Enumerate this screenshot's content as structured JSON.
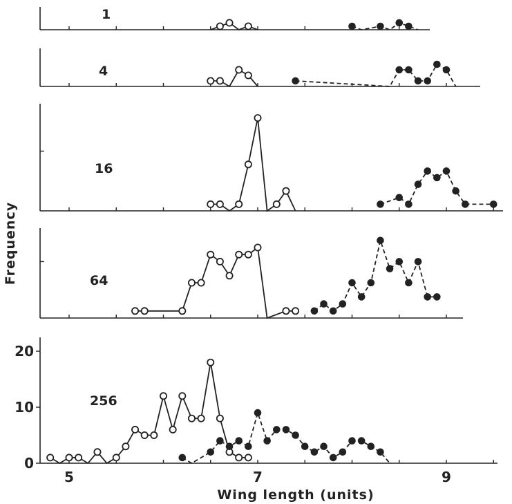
{
  "chart_data": {
    "type": "line",
    "xlabel": "Wing length (units)",
    "ylabel": "Frequency",
    "xlim": [
      4.75,
      9.7
    ],
    "x_ticks": [
      5,
      7,
      9
    ],
    "ylim": [
      0,
      20
    ],
    "y_ticks": [
      0,
      10,
      20
    ],
    "grid": false,
    "panels": [
      {
        "label": "1",
        "series": [
          {
            "marker": "open",
            "line": "solid",
            "x": [
              6.5,
              6.6,
              6.7,
              6.8,
              6.9,
              7.0
            ],
            "y": [
              0,
              1,
              2,
              0,
              1,
              0
            ]
          },
          {
            "marker": "filled",
            "line": "dashed",
            "x": [
              8.0,
              8.1,
              8.3,
              8.4,
              8.5,
              8.6,
              8.7
            ],
            "y": [
              1,
              0,
              1,
              0,
              2,
              1,
              0
            ]
          }
        ]
      },
      {
        "label": "4",
        "series": [
          {
            "marker": "open",
            "line": "solid",
            "x": [
              6.5,
              6.6,
              6.7,
              6.8,
              6.9,
              7.0
            ],
            "y": [
              1,
              1,
              0,
              3,
              2,
              0
            ]
          },
          {
            "marker": "filled",
            "line": "dashed",
            "x": [
              7.4,
              8.4,
              8.5,
              8.6,
              8.7,
              8.8,
              8.9,
              9.0,
              9.1
            ],
            "y": [
              1,
              0,
              3,
              3,
              1,
              1,
              4,
              3,
              0
            ]
          }
        ]
      },
      {
        "label": "16",
        "series": [
          {
            "marker": "open",
            "line": "solid",
            "x": [
              6.5,
              6.6,
              6.7,
              6.8,
              6.9,
              7.0,
              7.1,
              7.2,
              7.3,
              7.4
            ],
            "y": [
              1,
              1,
              0,
              1,
              7,
              14,
              0,
              1,
              3,
              0
            ]
          },
          {
            "marker": "filled",
            "line": "dashed",
            "x": [
              8.3,
              8.5,
              8.6,
              8.7,
              8.8,
              8.9,
              9.0,
              9.1,
              9.2,
              9.5
            ],
            "y": [
              1,
              2,
              1,
              4,
              6,
              5,
              6,
              3,
              1,
              1
            ]
          }
        ]
      },
      {
        "label": "64",
        "series": [
          {
            "marker": "open",
            "line": "solid",
            "x": [
              5.7,
              5.8,
              6.2,
              6.3,
              6.4,
              6.5,
              6.6,
              6.7,
              6.8,
              6.9,
              7.0,
              7.1,
              7.3,
              7.4
            ],
            "y": [
              1,
              1,
              1,
              5,
              5,
              9,
              8,
              6,
              9,
              9,
              10,
              0,
              1,
              1
            ]
          },
          {
            "marker": "filled",
            "line": "dashed",
            "x": [
              7.6,
              7.7,
              7.8,
              7.9,
              8.0,
              8.1,
              8.2,
              8.3,
              8.4,
              8.5,
              8.6,
              8.7,
              8.8,
              8.9
            ],
            "y": [
              1,
              2,
              1,
              2,
              5,
              3,
              5,
              11,
              7,
              8,
              5,
              8,
              3,
              3
            ]
          }
        ]
      },
      {
        "label": "256",
        "series": [
          {
            "marker": "open",
            "line": "solid",
            "x": [
              4.8,
              4.9,
              5.0,
              5.1,
              5.2,
              5.3,
              5.4,
              5.5,
              5.6,
              5.7,
              5.8,
              5.9,
              6.0,
              6.1,
              6.2,
              6.3,
              6.4,
              6.5,
              6.6,
              6.7,
              6.8,
              6.9
            ],
            "y": [
              1,
              0,
              1,
              1,
              0,
              2,
              0,
              1,
              3,
              6,
              5,
              5,
              12,
              6,
              12,
              8,
              8,
              18,
              8,
              2,
              1,
              1
            ]
          },
          {
            "marker": "filled",
            "line": "dashed",
            "x": [
              6.2,
              6.3,
              6.5,
              6.6,
              6.7,
              6.8,
              6.9,
              7.0,
              7.1,
              7.2,
              7.3,
              7.4,
              7.5,
              7.6,
              7.7,
              7.8,
              7.9,
              8.0,
              8.1,
              8.2,
              8.3,
              8.4
            ],
            "y": [
              1,
              0,
              2,
              4,
              3,
              4,
              3,
              9,
              4,
              6,
              6,
              5,
              3,
              2,
              3,
              1,
              2,
              4,
              4,
              3,
              2,
              0
            ]
          }
        ]
      }
    ]
  }
}
